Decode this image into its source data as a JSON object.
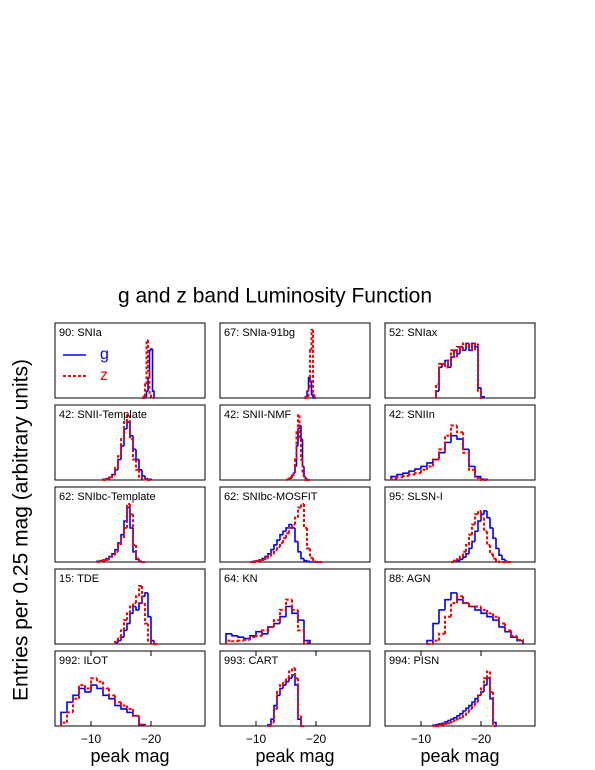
{
  "title": "g and z band Luminosity Function",
  "y_label": "Entries per 0.25 mag (arbitrary units)",
  "chart_data": [
    {
      "type": "histogram",
      "title": "90: SNIa",
      "legend": "upper left",
      "xlim": [
        -4,
        -29
      ],
      "ylim": [
        0,
        1.1
      ],
      "bins": [
        -18.5,
        -18.75,
        -19,
        -19.25,
        -19.5,
        -19.75,
        -20,
        -20.25,
        -20.5
      ],
      "series": [
        {
          "name": "g",
          "color": "#0000ff",
          "values": [
            0,
            0,
            0.02,
            0.1,
            0.3,
            0.7,
            0.72,
            0.1
          ]
        },
        {
          "name": "z",
          "color": "#ff0000",
          "values": [
            0,
            0.02,
            0.2,
            0.85,
            0.4,
            0.05,
            0,
            0
          ]
        }
      ]
    },
    {
      "type": "histogram",
      "title": "67: SNIa-91bg",
      "xlim": [
        -4,
        -29
      ],
      "ylim": [
        0,
        1.1
      ],
      "bins": [
        -18,
        -18.25,
        -18.5,
        -18.75,
        -19,
        -19.25,
        -19.5,
        -19.75,
        -20
      ],
      "series": [
        {
          "color": "#0000ff",
          "values": [
            0,
            0.02,
            0.1,
            0.3,
            0.25,
            0.05,
            0,
            0
          ]
        },
        {
          "color": "#ff0000",
          "values": [
            0,
            0,
            0.02,
            0.15,
            0.7,
            1.0,
            0.05,
            0
          ]
        }
      ]
    },
    {
      "type": "histogram",
      "title": "52: SNIax",
      "xlim": [
        -4,
        -29
      ],
      "ylim": [
        0,
        1.1
      ],
      "bins": [
        -12.5,
        -13,
        -13.5,
        -14,
        -14.5,
        -15,
        -15.5,
        -16,
        -16.5,
        -17,
        -17.5,
        -18,
        -18.5,
        -19,
        -19.5,
        -20,
        -20.5
      ],
      "series": [
        {
          "color": "#0000ff",
          "values": [
            0.1,
            0.45,
            0.5,
            0.55,
            0.45,
            0.6,
            0.7,
            0.65,
            0.75,
            0.7,
            0.8,
            0.7,
            0.8,
            0.75,
            0.15,
            0.02
          ]
        },
        {
          "color": "#ff0000",
          "values": [
            0.2,
            0.5,
            0.5,
            0.45,
            0.55,
            0.7,
            0.6,
            0.75,
            0.7,
            0.8,
            0.75,
            0.8,
            0.7,
            0.8,
            0.1,
            0
          ]
        }
      ]
    },
    {
      "type": "histogram",
      "title": "42: SNII-Template",
      "xlim": [
        -4,
        -29
      ],
      "ylim": [
        0,
        1.1
      ],
      "bins": [
        -12,
        -12.5,
        -13,
        -13.5,
        -14,
        -14.5,
        -15,
        -15.5,
        -16,
        -16.5,
        -17,
        -17.5,
        -18,
        -18.5,
        -19,
        -19.5,
        -20
      ],
      "series": [
        {
          "color": "#0000ff",
          "values": [
            0.01,
            0.02,
            0.04,
            0.08,
            0.15,
            0.3,
            0.5,
            0.75,
            0.85,
            0.65,
            0.45,
            0.3,
            0.15,
            0.06,
            0.02,
            0.01
          ]
        },
        {
          "color": "#ff0000",
          "values": [
            0,
            0.01,
            0.03,
            0.07,
            0.18,
            0.35,
            0.6,
            0.85,
            0.95,
            0.6,
            0.3,
            0.15,
            0.05,
            0.02,
            0.01,
            0
          ]
        }
      ]
    },
    {
      "type": "histogram",
      "title": "42: SNII-NMF",
      "xlim": [
        -4,
        -29
      ],
      "ylim": [
        0,
        1.1
      ],
      "bins": [
        -15,
        -15.25,
        -15.5,
        -15.75,
        -16,
        -16.25,
        -16.5,
        -16.75,
        -17,
        -17.25,
        -17.5,
        -17.75,
        -18,
        -18.25,
        -18.5,
        -18.75,
        -19
      ],
      "series": [
        {
          "color": "#0000ff",
          "values": [
            0,
            0.01,
            0.02,
            0.04,
            0.07,
            0.1,
            0.2,
            0.5,
            0.75,
            0.8,
            0.6,
            0.2,
            0.05,
            0.02,
            0.01,
            0
          ]
        },
        {
          "color": "#ff0000",
          "values": [
            0,
            0.01,
            0.02,
            0.03,
            0.06,
            0.12,
            0.3,
            0.7,
            0.95,
            0.6,
            0.3,
            0.08,
            0.02,
            0,
            0,
            0
          ]
        }
      ]
    },
    {
      "type": "histogram",
      "title": "42: SNIIn",
      "xlim": [
        -4,
        -29
      ],
      "ylim": [
        0,
        1.1
      ],
      "bins": [
        -5,
        -6,
        -7,
        -8,
        -9,
        -10,
        -11,
        -12,
        -13,
        -14,
        -15,
        -16,
        -17,
        -18,
        -19,
        -20,
        -21
      ],
      "series": [
        {
          "color": "#0000ff",
          "values": [
            0.05,
            0.08,
            0.1,
            0.13,
            0.16,
            0.2,
            0.25,
            0.3,
            0.4,
            0.55,
            0.65,
            0.6,
            0.45,
            0.2,
            0.05,
            0.01
          ]
        },
        {
          "color": "#ff0000",
          "values": [
            0.02,
            0.04,
            0.06,
            0.08,
            0.1,
            0.15,
            0.2,
            0.3,
            0.45,
            0.65,
            0.8,
            0.7,
            0.4,
            0.15,
            0.03,
            0
          ]
        }
      ]
    },
    {
      "type": "histogram",
      "title": "62: SNIbc-Template",
      "xlim": [
        -4,
        -29
      ],
      "ylim": [
        0,
        1.1
      ],
      "bins": [
        -11,
        -11.5,
        -12,
        -12.5,
        -13,
        -13.5,
        -14,
        -14.5,
        -15,
        -15.5,
        -16,
        -16.5,
        -17,
        -17.5,
        -18,
        -18.5,
        -19
      ],
      "series": [
        {
          "color": "#0000ff",
          "values": [
            0.01,
            0.02,
            0.03,
            0.05,
            0.08,
            0.12,
            0.18,
            0.28,
            0.4,
            0.6,
            0.8,
            0.5,
            0.15,
            0.04,
            0.01,
            0
          ]
        },
        {
          "color": "#ff0000",
          "values": [
            0,
            0.01,
            0.02,
            0.03,
            0.06,
            0.1,
            0.15,
            0.25,
            0.35,
            0.5,
            0.85,
            0.7,
            0.25,
            0.05,
            0,
            0
          ]
        }
      ]
    },
    {
      "type": "histogram",
      "title": "62: SNIbc-MOSFIT",
      "xlim": [
        -4,
        -29
      ],
      "ylim": [
        0,
        1.1
      ],
      "bins": [
        -9,
        -9.5,
        -10,
        -10.5,
        -11,
        -11.5,
        -12,
        -12.5,
        -13,
        -13.5,
        -14,
        -14.5,
        -15,
        -15.5,
        -16,
        -16.5,
        -17,
        -17.5,
        -18,
        -18.5,
        -19,
        -19.5,
        -20,
        -20.5,
        -21
      ],
      "series": [
        {
          "color": "#0000ff",
          "values": [
            0,
            0.01,
            0.02,
            0.03,
            0.05,
            0.08,
            0.12,
            0.18,
            0.25,
            0.32,
            0.4,
            0.45,
            0.5,
            0.55,
            0.5,
            0.3,
            0.15,
            0.05,
            0.02,
            0.01,
            0,
            0,
            0,
            0
          ]
        },
        {
          "color": "#ff0000",
          "values": [
            0,
            0,
            0.01,
            0.02,
            0.03,
            0.05,
            0.08,
            0.12,
            0.17,
            0.22,
            0.28,
            0.35,
            0.42,
            0.5,
            0.55,
            0.65,
            0.8,
            0.85,
            0.5,
            0.2,
            0.06,
            0.01,
            0,
            0
          ]
        }
      ]
    },
    {
      "type": "histogram",
      "title": "95: SLSN-I",
      "xlim": [
        -4,
        -29
      ],
      "ylim": [
        0,
        1.1
      ],
      "bins": [
        -15,
        -15.5,
        -16,
        -16.5,
        -17,
        -17.5,
        -18,
        -18.5,
        -19,
        -19.5,
        -20,
        -20.5,
        -21,
        -21.5,
        -22,
        -22.5,
        -23,
        -23.5,
        -24,
        -24.5,
        -25
      ],
      "series": [
        {
          "color": "#0000ff",
          "values": [
            0,
            0.01,
            0.02,
            0.04,
            0.07,
            0.12,
            0.2,
            0.3,
            0.45,
            0.6,
            0.7,
            0.75,
            0.65,
            0.5,
            0.35,
            0.2,
            0.1,
            0.04,
            0.01,
            0
          ]
        },
        {
          "color": "#ff0000",
          "values": [
            0,
            0.02,
            0.04,
            0.08,
            0.15,
            0.25,
            0.4,
            0.55,
            0.7,
            0.75,
            0.65,
            0.45,
            0.25,
            0.12,
            0.05,
            0.02,
            0,
            0,
            0,
            0
          ]
        }
      ]
    },
    {
      "type": "histogram",
      "title": "15: TDE",
      "xlim": [
        -4,
        -29
      ],
      "ylim": [
        0,
        1.1
      ],
      "bins": [
        -14,
        -14.5,
        -15,
        -15.5,
        -16,
        -16.5,
        -17,
        -17.5,
        -18,
        -18.5,
        -19,
        -19.5,
        -20,
        -20.5,
        -21
      ],
      "series": [
        {
          "color": "#0000ff",
          "values": [
            0.02,
            0.05,
            0.1,
            0.2,
            0.3,
            0.45,
            0.55,
            0.5,
            0.6,
            0.7,
            0.75,
            0.4,
            0.05,
            0
          ]
        },
        {
          "color": "#ff0000",
          "values": [
            0.05,
            0.1,
            0.2,
            0.35,
            0.45,
            0.55,
            0.6,
            0.7,
            0.85,
            0.6,
            0.3,
            0.05,
            0,
            0
          ]
        }
      ]
    },
    {
      "type": "histogram",
      "title": "64: KN",
      "xlim": [
        -4,
        -29
      ],
      "ylim": [
        0,
        1.1
      ],
      "bins": [
        -5,
        -6,
        -7,
        -8,
        -9,
        -10,
        -11,
        -12,
        -13,
        -14,
        -15,
        -16,
        -17,
        -18,
        -19
      ],
      "series": [
        {
          "color": "#0000ff",
          "values": [
            0.15,
            0.12,
            0.1,
            0.08,
            0.12,
            0.18,
            0.15,
            0.25,
            0.3,
            0.4,
            0.55,
            0.45,
            0.35,
            0.05
          ]
        },
        {
          "color": "#ff0000",
          "values": [
            0.05,
            0.04,
            0.05,
            0.06,
            0.1,
            0.12,
            0.2,
            0.25,
            0.35,
            0.5,
            0.65,
            0.5,
            0.2,
            0.02
          ]
        }
      ]
    },
    {
      "type": "histogram",
      "title": "88: AGN",
      "xlim": [
        -4,
        -29
      ],
      "ylim": [
        0,
        1.1
      ],
      "bins": [
        -11,
        -12,
        -13,
        -14,
        -15,
        -16,
        -17,
        -18,
        -19,
        -20,
        -21,
        -22,
        -23,
        -24,
        -25,
        -26,
        -27
      ],
      "series": [
        {
          "color": "#0000ff",
          "values": [
            0.05,
            0.3,
            0.5,
            0.65,
            0.75,
            0.65,
            0.6,
            0.55,
            0.5,
            0.45,
            0.4,
            0.35,
            0.25,
            0.18,
            0.1,
            0.05
          ]
        },
        {
          "color": "#ff0000",
          "values": [
            0,
            0.05,
            0.15,
            0.4,
            0.6,
            0.7,
            0.6,
            0.55,
            0.55,
            0.5,
            0.45,
            0.4,
            0.3,
            0.2,
            0.12,
            0.06
          ]
        }
      ]
    },
    {
      "type": "histogram",
      "title": "992: ILOT",
      "x_label": "peak mag",
      "xlim": [
        -4,
        -29
      ],
      "ylim": [
        0,
        1.1
      ],
      "xticks": [
        {
          "value": -10,
          "label": "−10"
        },
        {
          "value": -20,
          "label": "−20"
        }
      ],
      "bins": [
        -5,
        -6,
        -7,
        -8,
        -9,
        -10,
        -11,
        -12,
        -13,
        -14,
        -15,
        -16,
        -17,
        -18,
        -19
      ],
      "series": [
        {
          "color": "#0000ff",
          "values": [
            0.2,
            0.35,
            0.45,
            0.55,
            0.5,
            0.6,
            0.55,
            0.45,
            0.4,
            0.3,
            0.25,
            0.2,
            0.15,
            0.02
          ]
        },
        {
          "color": "#ff0000",
          "values": [
            0.05,
            0.2,
            0.4,
            0.6,
            0.55,
            0.7,
            0.65,
            0.55,
            0.45,
            0.35,
            0.3,
            0.25,
            0.15,
            0.02
          ]
        }
      ]
    },
    {
      "type": "histogram",
      "title": "993: CART",
      "x_label": "peak mag",
      "xlim": [
        -4,
        -29
      ],
      "ylim": [
        0,
        1.1
      ],
      "xticks": [
        {
          "value": -10,
          "label": "−10"
        },
        {
          "value": -20,
          "label": "−20"
        }
      ],
      "bins": [
        -12,
        -12.5,
        -13,
        -13.5,
        -14,
        -14.5,
        -15,
        -15.5,
        -16,
        -16.5,
        -17,
        -17.5,
        -18
      ],
      "series": [
        {
          "color": "#0000ff",
          "values": [
            0.02,
            0.1,
            0.3,
            0.45,
            0.55,
            0.6,
            0.65,
            0.7,
            0.75,
            0.6,
            0.1,
            0
          ]
        },
        {
          "color": "#ff0000",
          "values": [
            0,
            0.05,
            0.25,
            0.5,
            0.6,
            0.65,
            0.7,
            0.8,
            0.85,
            0.7,
            0.15,
            0
          ]
        }
      ]
    },
    {
      "type": "histogram",
      "title": "994: PISN",
      "x_label": "peak mag",
      "xlim": [
        -4,
        -29
      ],
      "ylim": [
        0,
        1.1
      ],
      "xticks": [
        {
          "value": -10,
          "label": "−10"
        },
        {
          "value": -20,
          "label": "−20"
        }
      ],
      "bins": [
        -12,
        -12.5,
        -13,
        -13.5,
        -14,
        -14.5,
        -15,
        -15.5,
        -16,
        -16.5,
        -17,
        -17.5,
        -18,
        -18.5,
        -19,
        -19.5,
        -20,
        -20.5,
        -21,
        -21.5,
        -22,
        -22.5
      ],
      "series": [
        {
          "color": "#0000ff",
          "values": [
            0.01,
            0.02,
            0.03,
            0.04,
            0.06,
            0.08,
            0.1,
            0.12,
            0.15,
            0.18,
            0.22,
            0.26,
            0.3,
            0.35,
            0.4,
            0.45,
            0.5,
            0.6,
            0.7,
            0.4,
            0.05
          ]
        },
        {
          "color": "#ff0000",
          "values": [
            0,
            0,
            0.01,
            0.02,
            0.03,
            0.04,
            0.06,
            0.08,
            0.1,
            0.12,
            0.15,
            0.2,
            0.25,
            0.3,
            0.35,
            0.45,
            0.55,
            0.7,
            0.8,
            0.5,
            0
          ]
        }
      ]
    }
  ]
}
